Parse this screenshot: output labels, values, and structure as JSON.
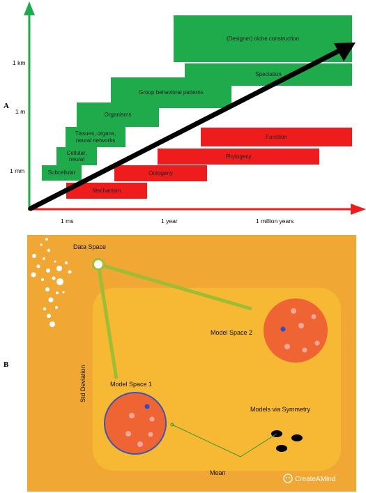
{
  "panelA": {
    "label": "A",
    "yTicks": [
      "1 km",
      "1 m",
      "1 mm"
    ],
    "xTicks": [
      "1 ms",
      "1 year",
      "1 million years"
    ],
    "greenBoxes": [
      "(Designer) niche construction",
      "Speciation",
      "Group behavioral patterns",
      "Organisms",
      "Tissues, organs,\nneural networks",
      "Cellular,\nneural",
      "Subcellular"
    ],
    "redBoxes": [
      "Function",
      "Phylogeny",
      "Ontogeny",
      "Mechanism"
    ],
    "colors": {
      "green": "#1faa4b",
      "red": "#ee1c1c",
      "arrow": "#000000"
    }
  },
  "panelB": {
    "label": "B",
    "dataSpace": "Data Space",
    "modelSpace1": "Model Space 1",
    "modelSpace2": "Model Space 2",
    "symmetry": "Models via Symmetry",
    "xAxis": "Mean",
    "yAxis": "Std  Deviation",
    "watermark": "CreateAMind",
    "colors": {
      "background": "#f0a733",
      "inner": "#f7b934",
      "circle": "#ee6533",
      "connector": "#9dbd35"
    }
  }
}
